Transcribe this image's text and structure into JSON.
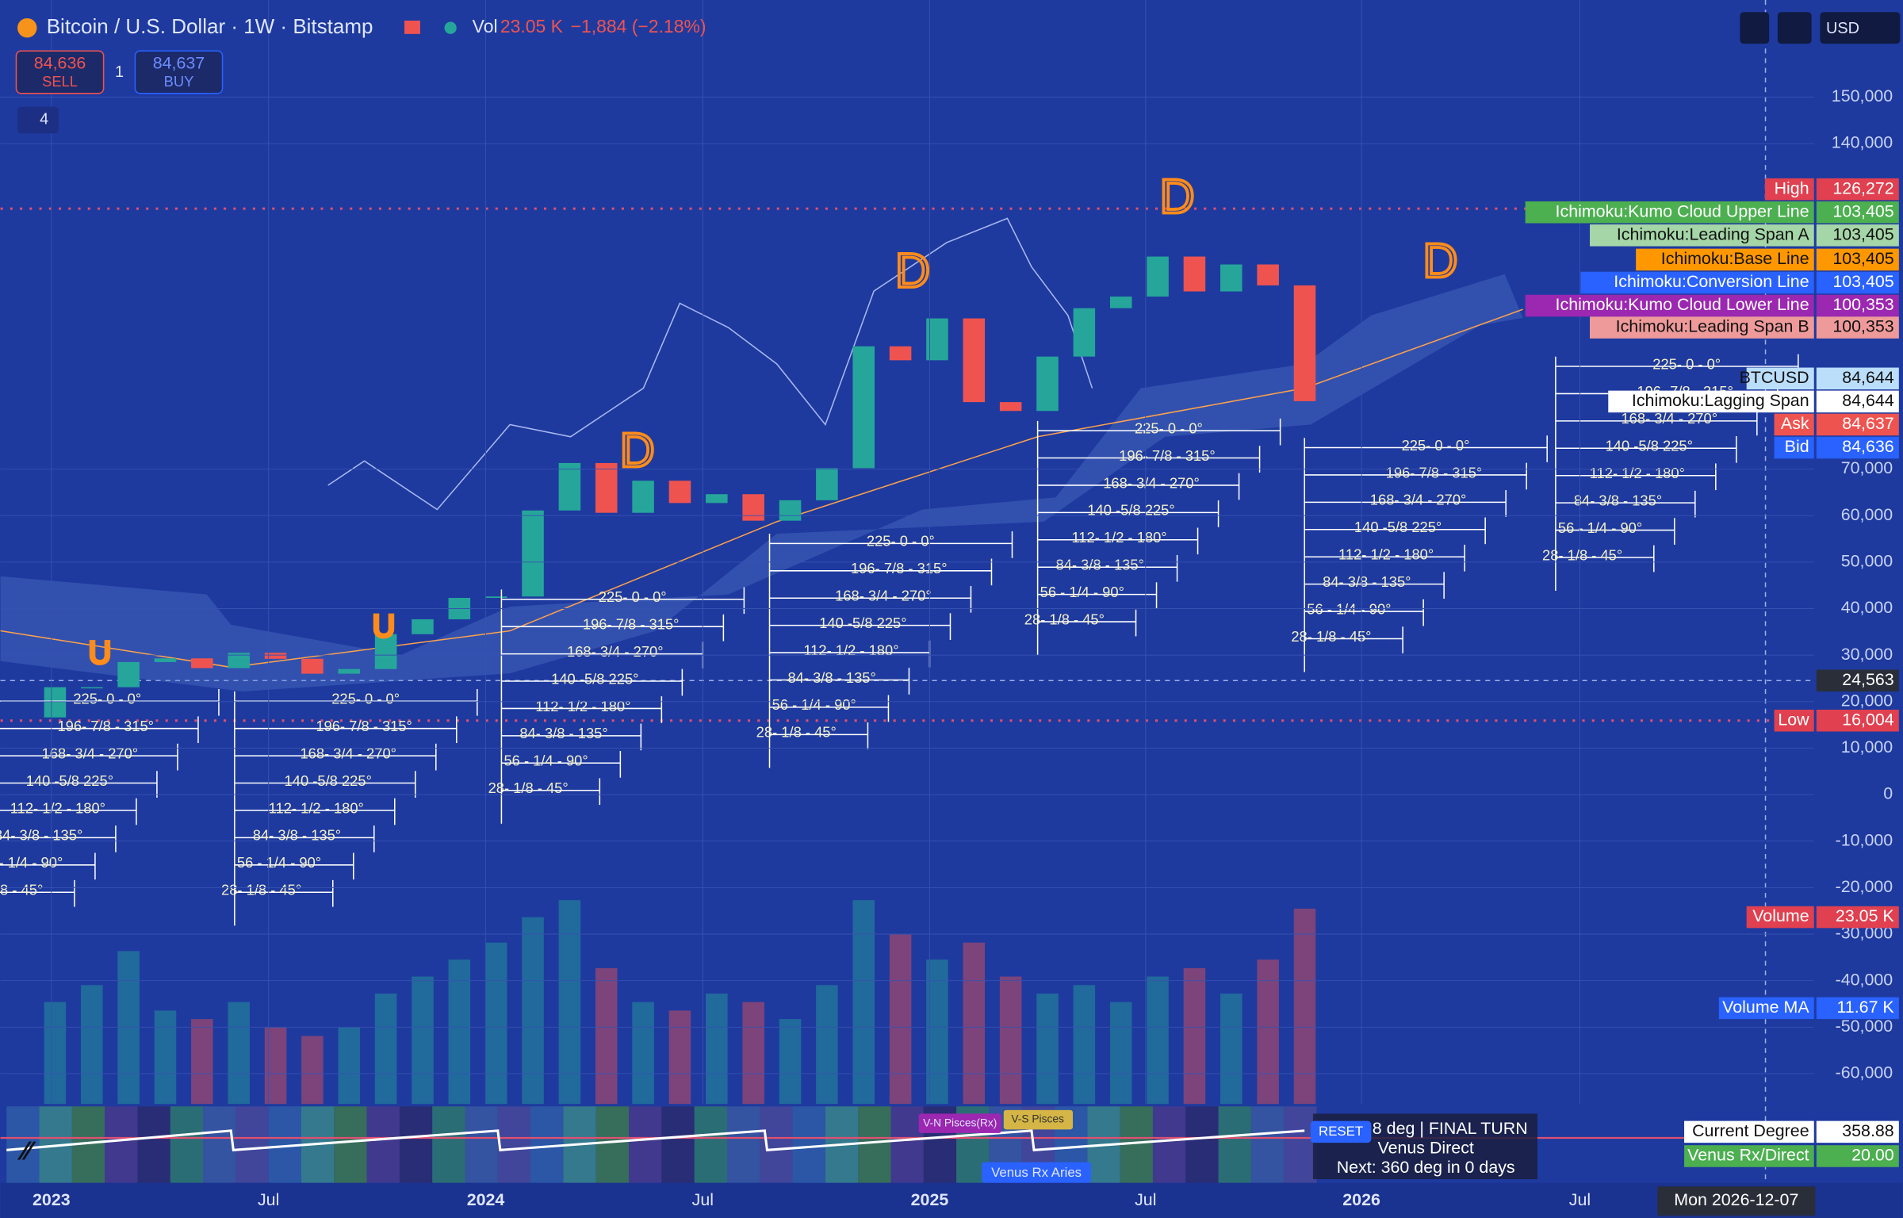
{
  "header": {
    "title": "Bitcoin / U.S. Dollar · 1W · Bitstamp",
    "vol_label": "Vol",
    "vol_value": "23.05 K",
    "change": "−1,884 (−2.18%)",
    "sell_price": "84,636",
    "sell": "SELL",
    "qty": "1",
    "buy_price": "84,637",
    "buy": "BUY",
    "layers": "4",
    "currency": "USD"
  },
  "chart_data": {
    "type": "candlestick",
    "series": [
      {
        "name": "BTCUSD",
        "up_color": "#26a69a",
        "down_color": "#ef5350",
        "values": [
          23.1,
          23.1,
          28.5,
          29.3,
          27.2,
          30.5,
          29.2,
          26.0,
          27.0,
          34.5,
          37.7,
          42.3,
          42.6,
          61.1,
          71.3,
          60.6,
          67.5,
          62.7,
          64.6,
          58.9,
          63.3,
          70.2,
          96.4,
          93.4,
          102.4,
          84.4,
          82.5,
          94.2,
          104.6,
          107.1,
          115.7,
          108.2,
          114.0,
          109.5,
          84.6
        ]
      }
    ],
    "open_first": 16.6,
    "volumes": [
      12,
      14,
      18,
      11,
      10,
      12,
      9,
      8,
      9,
      13,
      15,
      17,
      19,
      22,
      24,
      16,
      12,
      11,
      13,
      12,
      10,
      14,
      24,
      20,
      17,
      19,
      15,
      13,
      14,
      12,
      15,
      16,
      13,
      17,
      23
    ],
    "volume_ylim": [
      0,
      30
    ],
    "ylim": [
      -70000,
      160000
    ],
    "yticks": [
      {
        "value": 150000,
        "label": "150,000"
      },
      {
        "value": 140000,
        "label": "140,000"
      },
      {
        "value": 70000,
        "label": "70,000"
      },
      {
        "value": 60000,
        "label": "60,000"
      },
      {
        "value": 50000,
        "label": "50,000"
      },
      {
        "value": 40000,
        "label": "40,000"
      },
      {
        "value": 30000,
        "label": "30,000"
      },
      {
        "value": 20000,
        "label": "20,000"
      },
      {
        "value": 10000,
        "label": "10,000"
      },
      0,
      {
        "value": -10000,
        "label": "-10,000"
      },
      {
        "value": -20000,
        "label": "-20,000"
      },
      {
        "value": -30000,
        "label": "-30,000"
      },
      {
        "value": -40000,
        "label": "-40,000"
      },
      {
        "value": -50000,
        "label": "-50,000"
      },
      {
        "value": -60000,
        "label": "-60,000"
      }
    ],
    "xticks": [
      "2023",
      "Jul",
      "2024",
      "Jul",
      "2025",
      "Jul",
      "2026",
      "Jul"
    ],
    "cursor_date": "Mon 2026-12-07",
    "fan_labels": [
      "225- 0 - 0°",
      "196- 7/8 - 315°",
      "168- 3/4 - 270°",
      "140 -5/8 225°",
      "112- 1/2 - 180°",
      "84- 3/8 - 135°",
      "56 - 1/4 - 90°",
      "28- 1/8 - 45°"
    ],
    "annotations": [
      "U",
      "U",
      "D",
      "D",
      "D",
      "D"
    ],
    "tags": [
      {
        "name": "High",
        "value": "126,272",
        "color": "#e0404f"
      },
      {
        "name": "Ichimoku:Kumo Cloud Upper Line",
        "value": "103,405",
        "color": "#4caf50"
      },
      {
        "name": "Ichimoku:Leading Span A",
        "value": "103,405",
        "color": "#a5d6a7"
      },
      {
        "name": "Ichimoku:Base Line",
        "value": "103,405",
        "color": "#ff9800"
      },
      {
        "name": "Ichimoku:Conversion Line",
        "value": "103,405",
        "color": "#2962ff"
      },
      {
        "name": "Ichimoku:Kumo Cloud Lower Line",
        "value": "100,353",
        "color": "#9c27b0"
      },
      {
        "name": "Ichimoku:Leading Span B",
        "value": "100,353",
        "color": "#ef9a9a"
      },
      {
        "name": "BTCUSD",
        "value": "84,644",
        "color": "#bbdefb"
      },
      {
        "name": "Ichimoku:Lagging Span",
        "value": "84,644",
        "color": "#ffffff"
      },
      {
        "name": "Ask",
        "value": "84,637",
        "color": "#ef5350"
      },
      {
        "name": "Bid",
        "value": "84,636",
        "color": "#2962ff"
      }
    ],
    "crosshair": "24,563",
    "low": {
      "name": "Low",
      "value": "16,004"
    },
    "volume_tag": {
      "name": "Volume",
      "value": "23.05 K"
    },
    "volume_ma": {
      "name": "Volume MA",
      "value": "11.67 K"
    }
  },
  "panel": {
    "events": [
      "V-N Pisces(Rx)",
      "V-S Pisces",
      "Venus Rx Aries"
    ],
    "reset": "RESET",
    "info": [
      "8 deg | FINAL TURN",
      "Venus Direct",
      "Next: 360 deg in 0 days"
    ],
    "current_label": "Current Degree",
    "current_value": "358.88",
    "rx_label": "Venus Rx/Direct",
    "rx_value": "20.00"
  }
}
